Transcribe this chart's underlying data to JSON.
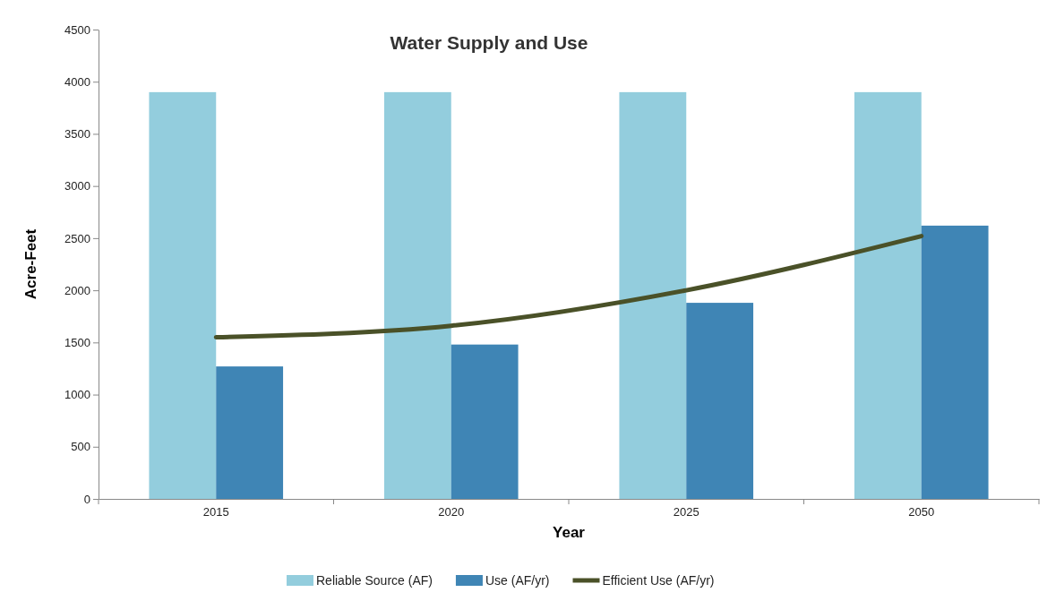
{
  "chart_data": {
    "type": "bar",
    "title": "Water Supply and Use",
    "xlabel": "Year",
    "ylabel": "Acre-Feet",
    "categories": [
      "2015",
      "2020",
      "2025",
      "2050"
    ],
    "series": [
      {
        "name": "Reliable Source  (AF)",
        "color": "#93cddd",
        "values": [
          3900,
          3900,
          3900,
          3900
        ]
      },
      {
        "name": "Use  (AF/yr)",
        "color": "#3f85b5",
        "values": [
          1270,
          1480,
          1880,
          2620
        ]
      },
      {
        "name": "Efficient Use  (AF/yr)",
        "type": "line",
        "color": "#4a5128",
        "values": [
          1550,
          1660,
          2000,
          2520
        ]
      }
    ],
    "ylim": [
      0,
      4500
    ],
    "yticks": [
      0,
      500,
      1000,
      1500,
      2000,
      2500,
      3000,
      3500,
      4000,
      4500
    ],
    "grid": false,
    "legend": "bottom"
  }
}
